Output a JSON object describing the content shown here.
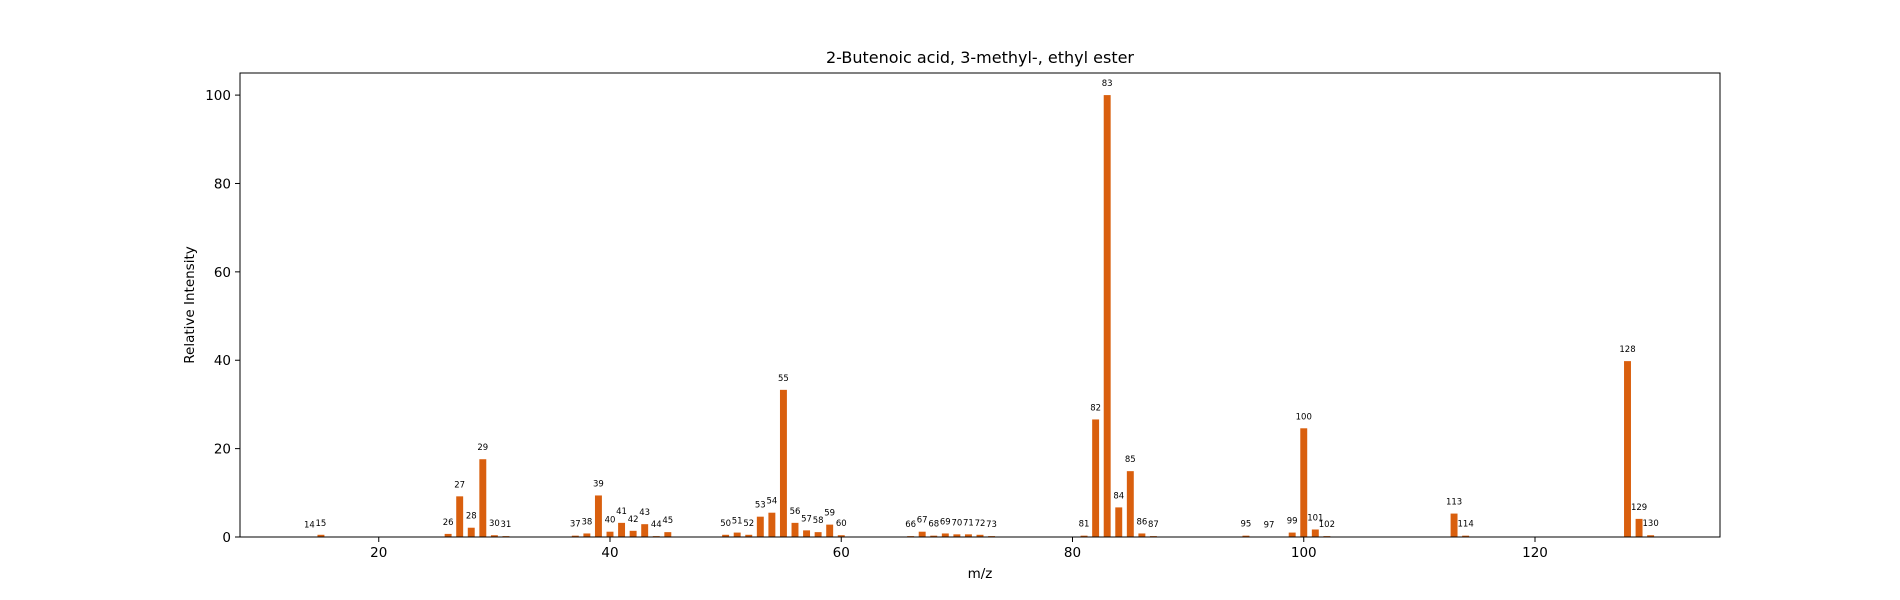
{
  "chart_data": {
    "type": "bar",
    "title": "2-Butenoic acid, 3-methyl-, ethyl ester",
    "xlabel": "m/z",
    "ylabel": "Relative Intensity",
    "xlim": [
      8,
      136
    ],
    "ylim": [
      0,
      105
    ],
    "xticks": [
      20,
      40,
      60,
      80,
      100,
      120
    ],
    "yticks": [
      0,
      20,
      40,
      60,
      80,
      100
    ],
    "grid": false,
    "bar_color": "#d95f0e",
    "series": [
      {
        "x": [
          14,
          15,
          26,
          27,
          28,
          29,
          30,
          31,
          37,
          38,
          39,
          40,
          41,
          42,
          43,
          44,
          45,
          50,
          51,
          52,
          53,
          54,
          55,
          56,
          57,
          58,
          59,
          60,
          66,
          67,
          68,
          69,
          70,
          71,
          72,
          73,
          81,
          82,
          83,
          84,
          85,
          86,
          87,
          95,
          97,
          99,
          100,
          101,
          102,
          113,
          114,
          128,
          129,
          130
        ],
        "values": [
          0.1,
          0.5,
          0.7,
          9.2,
          2.1,
          17.6,
          0.4,
          0.2,
          0.3,
          0.8,
          9.4,
          1.2,
          3.2,
          1.4,
          2.9,
          0.2,
          1.1,
          0.5,
          1.0,
          0.5,
          4.6,
          5.5,
          33.3,
          3.2,
          1.5,
          1.1,
          2.8,
          0.4,
          0.2,
          1.2,
          0.3,
          0.8,
          0.6,
          0.6,
          0.5,
          0.2,
          0.3,
          26.6,
          100,
          6.7,
          14.9,
          0.8,
          0.2,
          0.3,
          0.1,
          1.0,
          24.6,
          1.7,
          0.2,
          5.3,
          0.3,
          39.8,
          4.1,
          0.4
        ]
      }
    ]
  }
}
